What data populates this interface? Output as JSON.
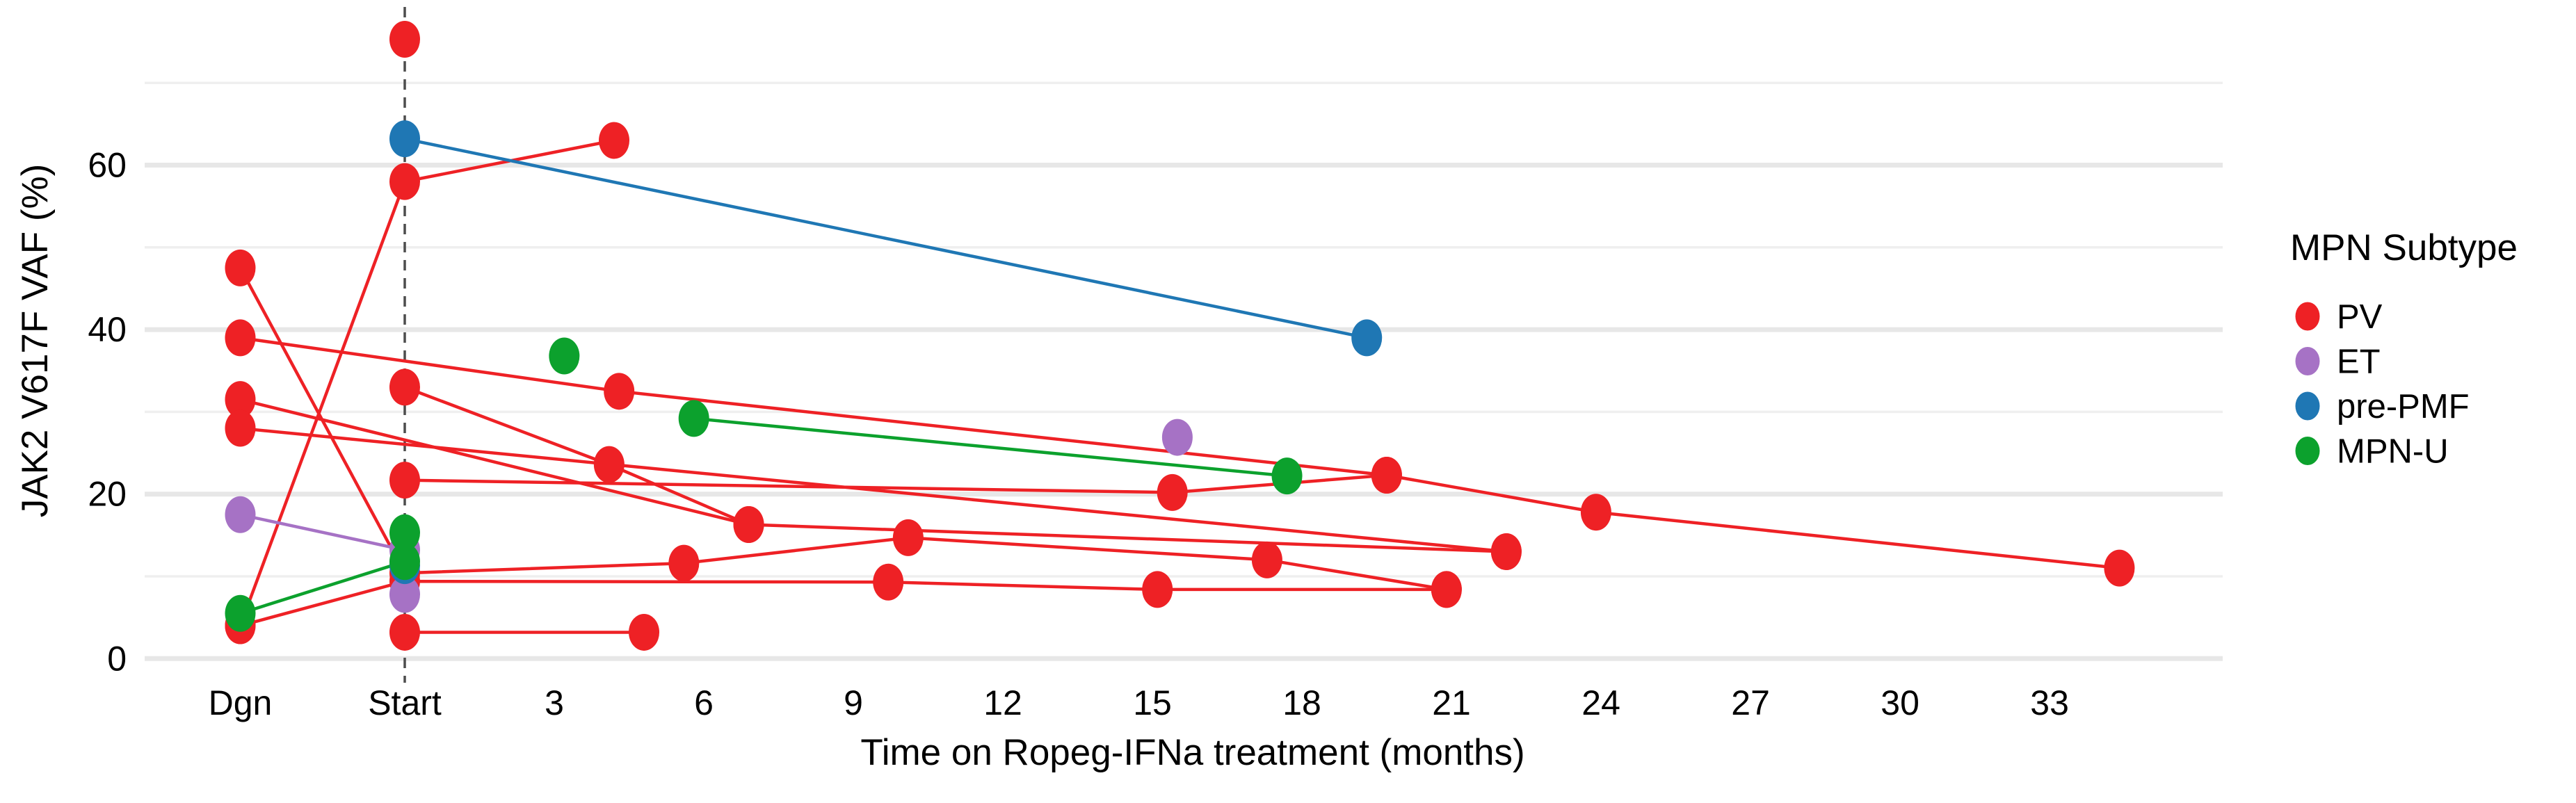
{
  "page": {
    "background_color": "#ffffff"
  },
  "chart_data": {
    "type": "line",
    "title": "",
    "xlabel": "Time on Ropeg-IFNa treatment (months)",
    "ylabel": "JAK2 V617F VAF (%)",
    "x_axis": {
      "ticks": [
        {
          "label": "Dgn",
          "m": -3.3
        },
        {
          "label": "Start",
          "m": 0
        },
        {
          "label": "3",
          "m": 3
        },
        {
          "label": "6",
          "m": 6
        },
        {
          "label": "9",
          "m": 9
        },
        {
          "label": "12",
          "m": 12
        },
        {
          "label": "15",
          "m": 15
        },
        {
          "label": "18",
          "m": 18
        },
        {
          "label": "21",
          "m": 21
        },
        {
          "label": "24",
          "m": 24
        },
        {
          "label": "27",
          "m": 27
        },
        {
          "label": "30",
          "m": 30
        },
        {
          "label": "33",
          "m": 33
        }
      ],
      "start_dashed_line_m": 0
    },
    "y_axis": {
      "ticks": [
        {
          "label": "0",
          "v": 0
        },
        {
          "label": "20",
          "v": 20
        },
        {
          "label": "40",
          "v": 40
        },
        {
          "label": "60",
          "v": 60
        }
      ],
      "minor_gridlines": [
        10,
        30,
        50,
        70
      ],
      "range": [
        0,
        79
      ]
    },
    "grid": {
      "major_color": "#e7e7e7",
      "minor_color": "#efefef",
      "dashed_line_color": "#4d4d4d"
    },
    "legend": {
      "title": "MPN Subtype",
      "position": "right",
      "items": [
        {
          "label": "PV",
          "color": "#ee2125"
        },
        {
          "label": "ET",
          "color": "#a672c5"
        },
        {
          "label": "pre-PMF",
          "color": "#1f77b4"
        },
        {
          "label": "MPN-U",
          "color": "#0ca12d"
        }
      ]
    },
    "subtype_colors": {
      "PV": "#ee2125",
      "ET": "#a672c5",
      "pre-PMF": "#1f77b4",
      "MPN-U": "#0ca12d"
    },
    "series": [
      {
        "subtype": "PV",
        "points": [
          [
            -3.3,
            39
          ],
          [
            4.3,
            32.5
          ],
          [
            19.7,
            22.3
          ],
          [
            23.9,
            17.8
          ],
          [
            34.4,
            11
          ]
        ]
      },
      {
        "subtype": "PV",
        "points": [
          [
            0,
            21.7
          ],
          [
            15.4,
            20.2
          ],
          [
            19.7,
            22.3
          ]
        ]
      },
      {
        "subtype": "PV",
        "points": [
          [
            -3.3,
            31.5
          ],
          [
            6.9,
            16.3
          ]
        ]
      },
      {
        "subtype": "PV",
        "points": [
          [
            -3.3,
            28
          ],
          [
            22.1,
            13
          ]
        ]
      },
      {
        "subtype": "PV",
        "points": [
          [
            0,
            33
          ],
          [
            4.1,
            23.6
          ],
          [
            6.9,
            16.3
          ],
          [
            22.1,
            13
          ]
        ]
      },
      {
        "subtype": "PV",
        "points": [
          [
            -3.3,
            47.5
          ],
          [
            0,
            10.4
          ],
          [
            5.6,
            11.6
          ],
          [
            10.1,
            14.7
          ],
          [
            17.3,
            12
          ],
          [
            20.9,
            8.4
          ]
        ]
      },
      {
        "subtype": "PV",
        "points": [
          [
            -3.3,
            4
          ],
          [
            0,
            58
          ],
          [
            4.2,
            63
          ]
        ]
      },
      {
        "subtype": "PV",
        "points": [
          [
            -3.3,
            4
          ],
          [
            0,
            9.4
          ],
          [
            9.7,
            9.3
          ],
          [
            15.1,
            8.4
          ],
          [
            20.9,
            8.4
          ]
        ]
      },
      {
        "subtype": "PV",
        "points": [
          [
            0,
            3.2
          ],
          [
            4.8,
            3.2
          ]
        ]
      },
      {
        "subtype": "ET",
        "points": [
          [
            -3.3,
            17.5
          ],
          [
            0,
            13.2
          ]
        ]
      },
      {
        "subtype": "pre-PMF",
        "points": [
          [
            0,
            63.2
          ],
          [
            19.3,
            39
          ]
        ]
      },
      {
        "subtype": "MPN-U",
        "points": [
          [
            -3.3,
            5.5
          ],
          [
            0,
            11.8
          ]
        ]
      },
      {
        "subtype": "MPN-U",
        "points": [
          [
            5.8,
            29.2
          ],
          [
            17.7,
            22.2
          ]
        ]
      }
    ],
    "isolated_points": [
      {
        "subtype": "PV",
        "m": 0,
        "v": 75.3
      },
      {
        "subtype": "ET",
        "m": 0,
        "v": 7.8
      },
      {
        "subtype": "ET",
        "m": 15.5,
        "v": 26.9
      },
      {
        "subtype": "pre-PMF",
        "m": 0,
        "v": 11.3
      },
      {
        "subtype": "MPN-U",
        "m": 0,
        "v": 15.3
      },
      {
        "subtype": "MPN-U",
        "m": 3.2,
        "v": 36.8
      }
    ]
  }
}
